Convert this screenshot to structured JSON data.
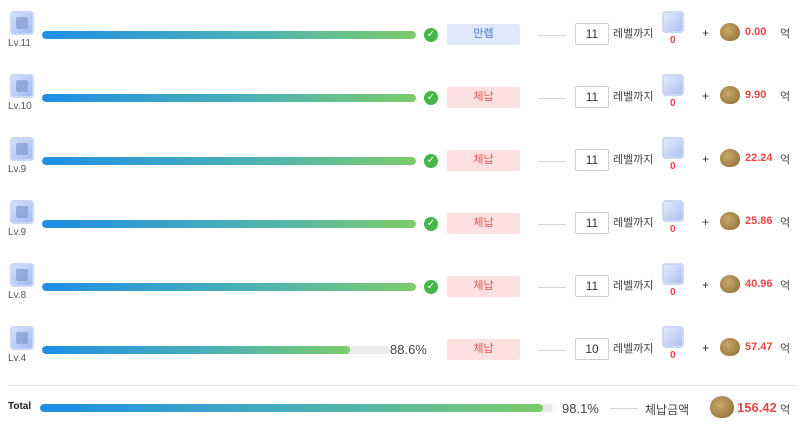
{
  "rows": [
    {
      "level": "Lv.11",
      "progress": 1.0,
      "pct_text": "",
      "status": "만렙",
      "status_type": "max",
      "target": "11",
      "until": "레벨까지",
      "count": "0",
      "amount": "0.00",
      "unit": "억"
    },
    {
      "level": "Lv.10",
      "progress": 1.0,
      "pct_text": "",
      "status": "체납",
      "status_type": "pay",
      "target": "11",
      "until": "레벨까지",
      "count": "0",
      "amount": "9.90",
      "unit": "억"
    },
    {
      "level": "Lv.9",
      "progress": 1.0,
      "pct_text": "",
      "status": "체납",
      "status_type": "pay",
      "target": "11",
      "until": "레벨까지",
      "count": "0",
      "amount": "22.24",
      "unit": "억"
    },
    {
      "level": "Lv.9",
      "progress": 1.0,
      "pct_text": "",
      "status": "체납",
      "status_type": "pay",
      "target": "11",
      "until": "레벨까지",
      "count": "0",
      "amount": "25.86",
      "unit": "억"
    },
    {
      "level": "Lv.8",
      "progress": 1.0,
      "pct_text": "",
      "status": "체납",
      "status_type": "pay",
      "target": "11",
      "until": "레벨까지",
      "count": "0",
      "amount": "40.96",
      "unit": "억"
    },
    {
      "level": "Lv.4",
      "progress": 0.886,
      "pct_text": "88.6%",
      "status": "체납",
      "status_type": "pay",
      "target": "10",
      "until": "레벨까지",
      "count": "0",
      "amount": "57.47",
      "unit": "억"
    }
  ],
  "total": {
    "label": "Total",
    "progress": 0.981,
    "pct_text": "98.1%",
    "amount_label": "체납금액",
    "amount": "156.42",
    "unit": "억"
  },
  "icons": {
    "badge": "symbol-badge-icon",
    "check": "check-circle-icon",
    "mini": "symbol-item-icon",
    "bag": "meso-bag-icon"
  },
  "colors": {
    "bar_start": "#1e8ee6",
    "bar_end": "#7ccc6a",
    "check": "#45b649",
    "amount": "#e84545",
    "status_max_bg": "#dfe9fb",
    "status_pay_bg": "#fde0e0"
  }
}
